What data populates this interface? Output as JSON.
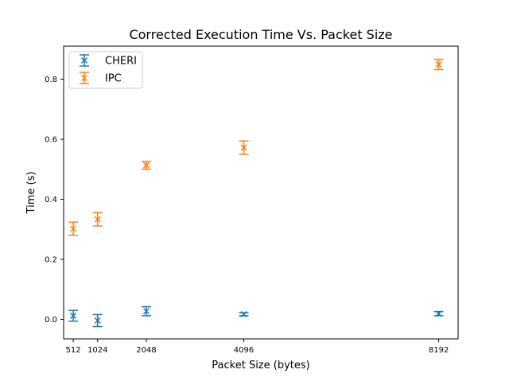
{
  "chart_data": {
    "type": "scatter",
    "title": "Corrected Execution Time Vs. Packet Size",
    "xlabel": "Packet Size (bytes)",
    "ylabel": "Time (s)",
    "x": [
      512,
      1024,
      2048,
      4096,
      8192
    ],
    "xticks": [
      "512",
      "1024",
      "2048",
      "4096",
      "8192"
    ],
    "yticks": [
      0.0,
      0.2,
      0.4,
      0.6,
      0.8
    ],
    "ytick_labels": [
      "0.0",
      "0.2",
      "0.4",
      "0.6",
      "0.8"
    ],
    "xlim": [
      310,
      8600
    ],
    "ylim": [
      -0.065,
      0.91
    ],
    "legend_position": "top-left",
    "marker": "x",
    "error_bars": true,
    "series": [
      {
        "name": "CHERI",
        "color": "#1f77b4",
        "values": [
          0.012,
          -0.004,
          0.027,
          0.017,
          0.019
        ],
        "errors": [
          0.018,
          0.02,
          0.015,
          0.005,
          0.007
        ]
      },
      {
        "name": "IPC",
        "color": "#ff7f0e",
        "values": [
          0.302,
          0.333,
          0.513,
          0.572,
          0.849
        ],
        "errors": [
          0.022,
          0.022,
          0.013,
          0.022,
          0.017
        ]
      }
    ]
  }
}
